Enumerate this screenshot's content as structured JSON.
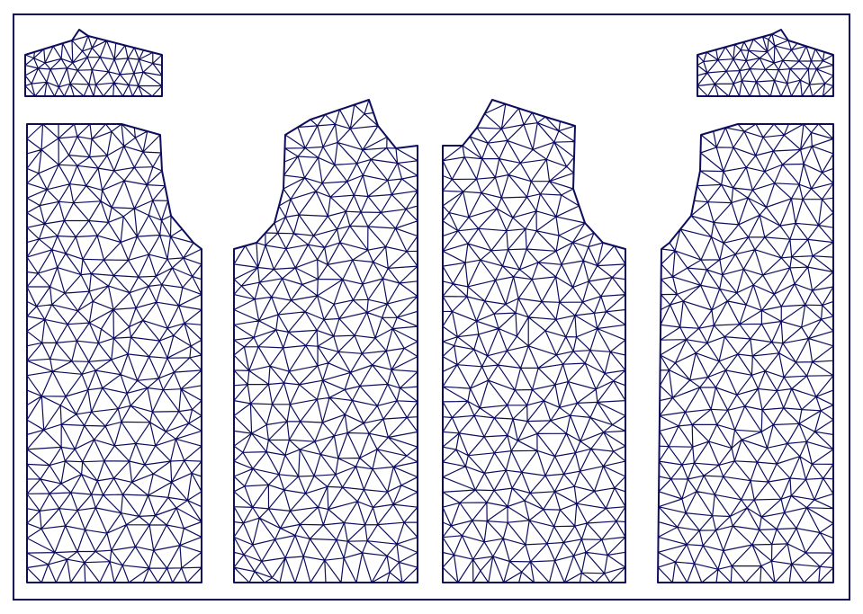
{
  "diagram": {
    "kind": "triangulated-garment-pattern-layout",
    "colors": {
      "background": "#ffffff",
      "line": "#0d0d5c"
    },
    "pieces": [
      {
        "id": "collar-left",
        "kind": "collar"
      },
      {
        "id": "front-left",
        "kind": "front-panel"
      },
      {
        "id": "back-left",
        "kind": "back-panel"
      },
      {
        "id": "back-right",
        "kind": "back-panel"
      },
      {
        "id": "front-right",
        "kind": "front-panel"
      },
      {
        "id": "collar-right",
        "kind": "collar"
      }
    ]
  }
}
